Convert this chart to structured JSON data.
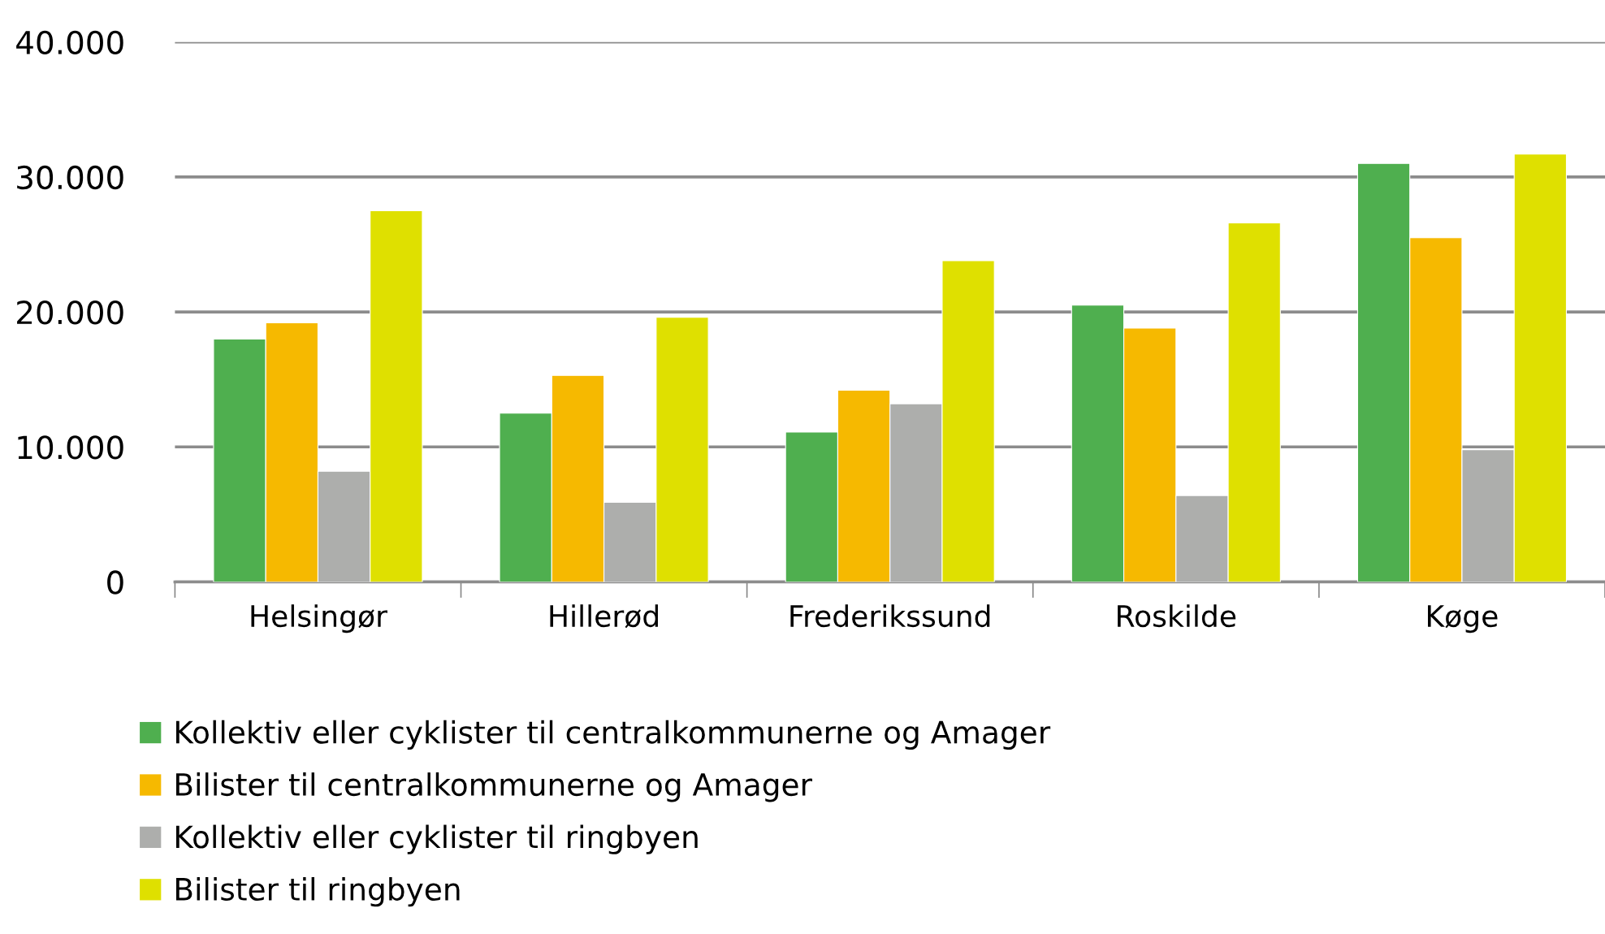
{
  "chart_data": {
    "type": "bar",
    "categories": [
      "Helsingør",
      "Hillerød",
      "Frederikssund",
      "Roskilde",
      "Køge"
    ],
    "series": [
      {
        "name": "Kollektiv eller cyklister til centralkommunerne og Amager",
        "color": "#4faf4f",
        "values": [
          18000,
          12500,
          11100,
          20500,
          31000
        ]
      },
      {
        "name": "Bilister til centralkommunerne og Amager",
        "color": "#f6b900",
        "values": [
          19200,
          15300,
          14200,
          18800,
          25500
        ]
      },
      {
        "name": "Kollektiv eller cyklister til ringbyen",
        "color": "#adaeac",
        "values": [
          8200,
          5900,
          13200,
          6400,
          9800
        ]
      },
      {
        "name": "Bilister til ringbyen",
        "color": "#dfe000",
        "values": [
          27500,
          19600,
          23800,
          26600,
          31700
        ]
      }
    ],
    "ylim": [
      0,
      40000
    ],
    "yticks": [
      {
        "value": 0,
        "label": "0"
      },
      {
        "value": 10000,
        "label": "10.000"
      },
      {
        "value": 20000,
        "label": "20.000"
      },
      {
        "value": 30000,
        "label": "30.000"
      },
      {
        "value": 40000,
        "label": "40.000"
      }
    ],
    "grid": "y",
    "legend": "bottom"
  }
}
